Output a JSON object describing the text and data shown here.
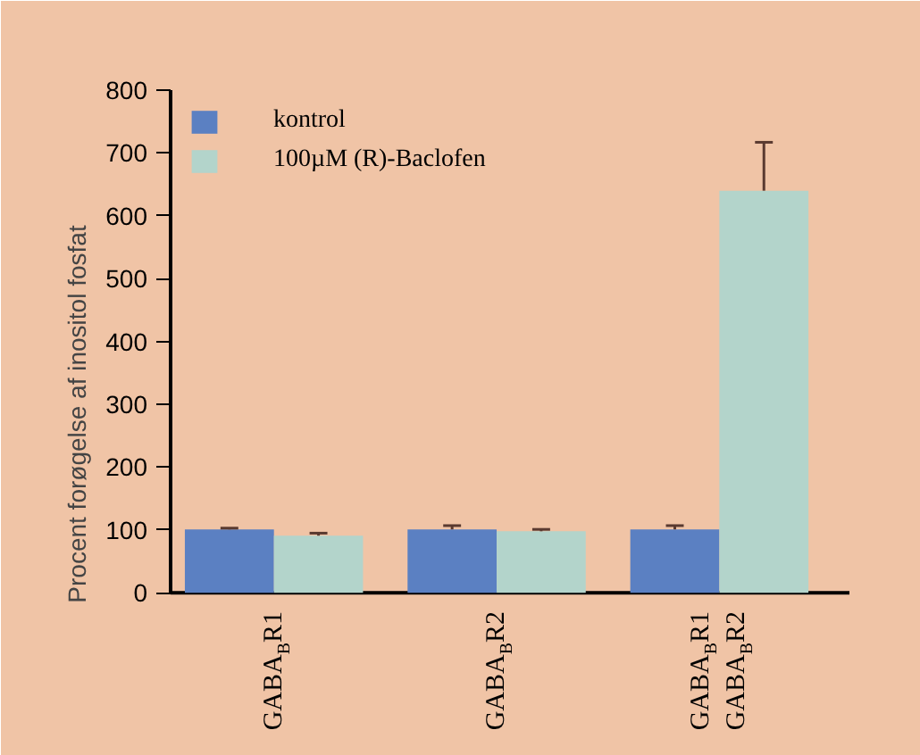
{
  "chart_data": {
    "type": "bar",
    "ylabel": "Procent forøgelse af inositol fosfat",
    "categories": [
      "GABA$_{B}$R1",
      "GABA$_{B}$R2",
      "GABA$_{B}$R1\nGABA$_{B}$R2"
    ],
    "series": [
      {
        "name": "kontrol",
        "color": "#5b80c2",
        "values": [
          101,
          101,
          101
        ],
        "errors": [
          [
            101,
            103
          ],
          [
            101,
            107
          ],
          [
            101,
            107
          ]
        ]
      },
      {
        "name": "100µM (R)-Baclofen",
        "color": "#b3d4cb",
        "values": [
          91,
          98,
          640
        ],
        "errors": [
          [
            91,
            95
          ],
          [
            98,
            101
          ],
          [
            640,
            717
          ]
        ]
      }
    ],
    "ylim": [
      0,
      800
    ],
    "yticks": [
      0,
      100,
      200,
      300,
      400,
      500,
      600,
      700,
      800
    ],
    "grid": false,
    "legend": "top left"
  }
}
